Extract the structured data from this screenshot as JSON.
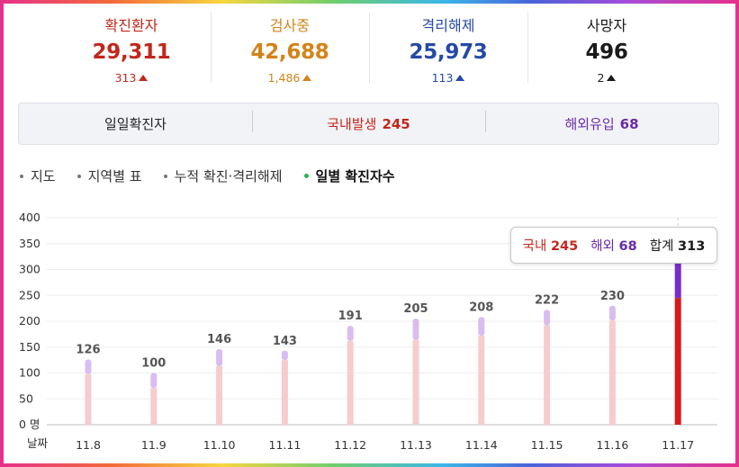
{
  "stats": [
    {
      "label": "확진환자",
      "value": "29,311",
      "delta": "313",
      "color": "#c2271c"
    },
    {
      "label": "검사중",
      "value": "42,688",
      "delta": "1,486",
      "color": "#d4831a"
    },
    {
      "label": "격리해제",
      "value": "25,973",
      "delta": "113",
      "color": "#2549a6"
    },
    {
      "label": "사망자",
      "value": "496",
      "delta": "2",
      "color": "#1a1a1a"
    }
  ],
  "daily": {
    "title": "일일확진자",
    "domestic_label": "국내발생",
    "domestic_value": "245",
    "overseas_label": "해외유입",
    "overseas_value": "68"
  },
  "tabs": [
    {
      "label": "지도",
      "active": false
    },
    {
      "label": "지역별 표",
      "active": false
    },
    {
      "label": "누적 확진·격리해제",
      "active": false
    },
    {
      "label": "일별 확진자수",
      "active": true
    }
  ],
  "tooltip": {
    "domestic_label": "국내",
    "domestic_value": "245",
    "overseas_label": "해외",
    "overseas_value": "68",
    "total_label": "합계",
    "total_value": "313"
  },
  "chart_data": {
    "type": "bar",
    "stacked": true,
    "categories": [
      "11.8",
      "11.9",
      "11.10",
      "11.11",
      "11.12",
      "11.13",
      "11.14",
      "11.15",
      "11.16",
      "11.17"
    ],
    "xlabel": "날짜",
    "ylim": [
      0,
      400
    ],
    "yticks": [
      0,
      50,
      100,
      150,
      200,
      250,
      300,
      350,
      400
    ],
    "ytick_labels": [
      "0 명",
      "50",
      "100",
      "150",
      "200",
      "250",
      "300",
      "350",
      "400"
    ],
    "series": [
      {
        "name": "국내",
        "values": [
          98,
          71,
          113,
          125,
          162,
          164,
          172,
          192,
          201,
          245
        ]
      },
      {
        "name": "해외",
        "values": [
          28,
          29,
          33,
          18,
          29,
          41,
          36,
          30,
          29,
          68
        ]
      }
    ],
    "totals": [
      126,
      100,
      146,
      143,
      191,
      205,
      208,
      222,
      230,
      313
    ],
    "total_labels": [
      "126",
      "100",
      "146",
      "143",
      "191",
      "205",
      "208",
      "222",
      "230",
      ""
    ],
    "highlight_index": 9,
    "colors": {
      "domestic": "#f6cccc",
      "overseas": "#d9bdf0",
      "domestic_highlight": "#d41c1c",
      "overseas_highlight": "#7a2ec7"
    },
    "grid": true
  }
}
